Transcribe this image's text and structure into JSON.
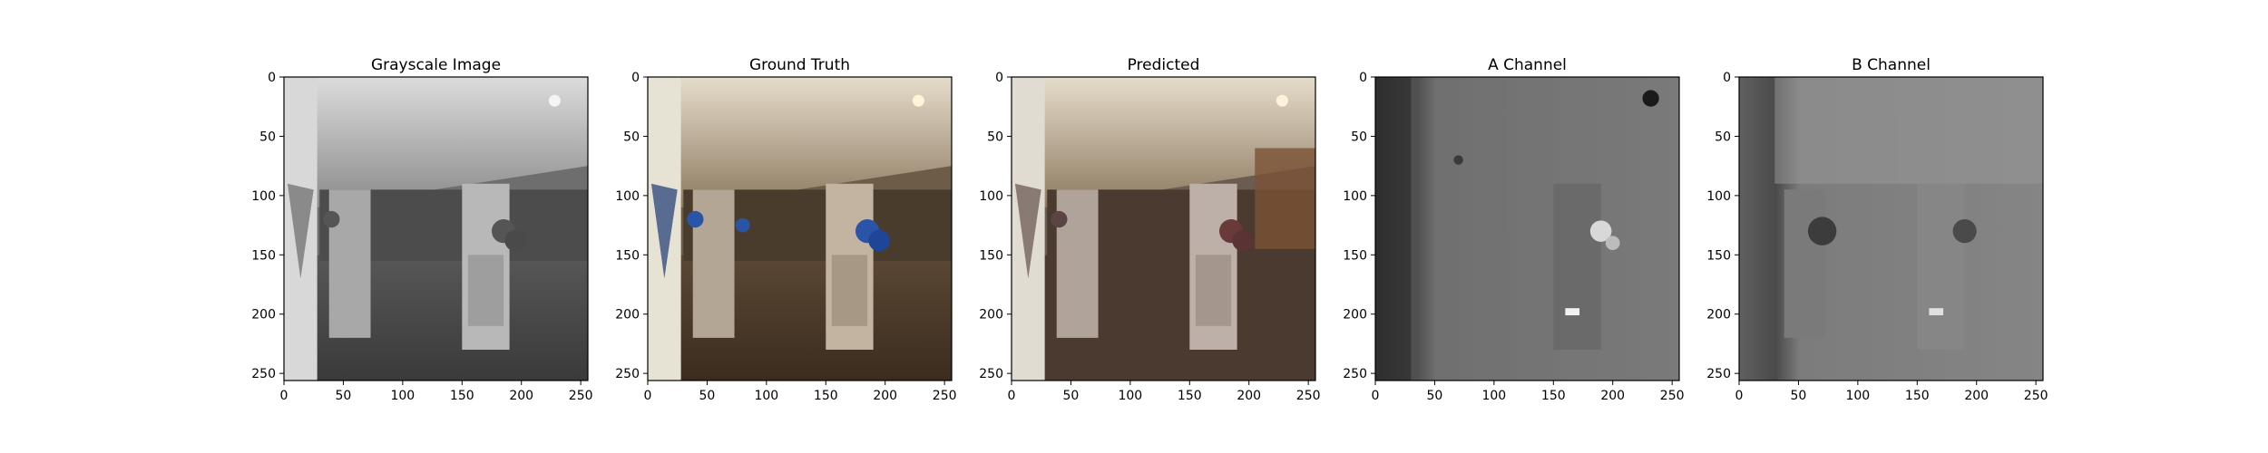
{
  "chart_data": [
    {
      "type": "image",
      "title": "Grayscale Image",
      "image_size": [
        256,
        256
      ],
      "xlim": [
        0,
        256
      ],
      "ylim": [
        256,
        0
      ],
      "xticks": [
        0,
        50,
        100,
        150,
        200,
        250
      ],
      "yticks": [
        0,
        50,
        100,
        150,
        200,
        250
      ],
      "colorization": "grayscale"
    },
    {
      "type": "image",
      "title": "Ground Truth",
      "image_size": [
        256,
        256
      ],
      "xlim": [
        0,
        256
      ],
      "ylim": [
        256,
        0
      ],
      "xticks": [
        0,
        50,
        100,
        150,
        200,
        250
      ],
      "yticks": [
        0,
        50,
        100,
        150,
        200,
        250
      ],
      "colorization": "color"
    },
    {
      "type": "image",
      "title": "Predicted",
      "image_size": [
        256,
        256
      ],
      "xlim": [
        0,
        256
      ],
      "ylim": [
        256,
        0
      ],
      "xticks": [
        0,
        50,
        100,
        150,
        200,
        250
      ],
      "yticks": [
        0,
        50,
        100,
        150,
        200,
        250
      ],
      "colorization": "color"
    },
    {
      "type": "image",
      "title": "A Channel",
      "image_size": [
        256,
        256
      ],
      "xlim": [
        0,
        256
      ],
      "ylim": [
        256,
        0
      ],
      "xticks": [
        0,
        50,
        100,
        150,
        200,
        250
      ],
      "yticks": [
        0,
        50,
        100,
        150,
        200,
        250
      ],
      "colorization": "grayscale"
    },
    {
      "type": "image",
      "title": "B Channel",
      "image_size": [
        256,
        256
      ],
      "xlim": [
        0,
        256
      ],
      "ylim": [
        256,
        0
      ],
      "xticks": [
        0,
        50,
        100,
        150,
        200,
        250
      ],
      "yticks": [
        0,
        50,
        100,
        150,
        200,
        250
      ],
      "colorization": "grayscale"
    }
  ]
}
